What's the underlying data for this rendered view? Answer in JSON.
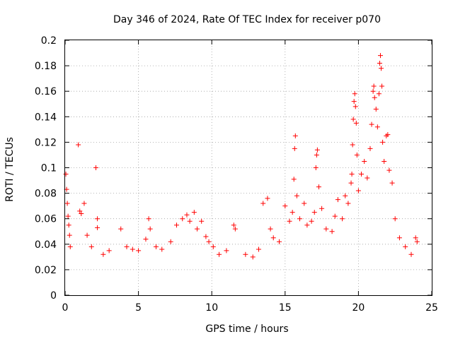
{
  "chart_data": {
    "type": "scatter",
    "title": "Day 346 of 2024, Rate Of TEC Index for receiver p070",
    "xlabel": "GPS time / hours",
    "ylabel": "ROTI / TECUs",
    "xlim": [
      0,
      25
    ],
    "ylim": [
      0,
      0.2
    ],
    "xticks": [
      0,
      5,
      10,
      15,
      20,
      25
    ],
    "xtick_labels": [
      "0",
      "5",
      "10",
      "15",
      "20",
      "25"
    ],
    "yticks": [
      0,
      0.02,
      0.04,
      0.06,
      0.08,
      0.1,
      0.12,
      0.14,
      0.16,
      0.18,
      0.2
    ],
    "ytick_labels": [
      "0",
      "0.02",
      "0.04",
      "0.06",
      "0.08",
      "0.1",
      "0.12",
      "0.14",
      "0.16",
      "0.18",
      "0.2"
    ],
    "grid": true,
    "marker": "+",
    "color": "#ff0000",
    "series": [
      {
        "name": "ROTI",
        "points": [
          [
            0.05,
            0.095
          ],
          [
            0.1,
            0.083
          ],
          [
            0.15,
            0.072
          ],
          [
            0.2,
            0.062
          ],
          [
            0.25,
            0.055
          ],
          [
            0.3,
            0.047
          ],
          [
            0.35,
            0.038
          ],
          [
            0.9,
            0.118
          ],
          [
            1.0,
            0.066
          ],
          [
            1.1,
            0.064
          ],
          [
            1.3,
            0.072
          ],
          [
            1.5,
            0.047
          ],
          [
            1.8,
            0.038
          ],
          [
            2.1,
            0.1
          ],
          [
            2.2,
            0.06
          ],
          [
            2.2,
            0.053
          ],
          [
            2.6,
            0.032
          ],
          [
            3.0,
            0.035
          ],
          [
            3.8,
            0.052
          ],
          [
            4.2,
            0.038
          ],
          [
            4.6,
            0.036
          ],
          [
            5.0,
            0.035
          ],
          [
            5.5,
            0.044
          ],
          [
            5.7,
            0.06
          ],
          [
            5.8,
            0.052
          ],
          [
            6.2,
            0.038
          ],
          [
            6.6,
            0.036
          ],
          [
            7.2,
            0.042
          ],
          [
            7.6,
            0.055
          ],
          [
            8.0,
            0.06
          ],
          [
            8.3,
            0.063
          ],
          [
            8.5,
            0.058
          ],
          [
            8.8,
            0.065
          ],
          [
            9.0,
            0.052
          ],
          [
            9.3,
            0.058
          ],
          [
            9.6,
            0.046
          ],
          [
            9.8,
            0.042
          ],
          [
            10.1,
            0.038
          ],
          [
            10.5,
            0.032
          ],
          [
            11.0,
            0.035
          ],
          [
            11.5,
            0.055
          ],
          [
            11.6,
            0.052
          ],
          [
            12.3,
            0.032
          ],
          [
            12.8,
            0.03
          ],
          [
            13.2,
            0.036
          ],
          [
            13.5,
            0.072
          ],
          [
            13.8,
            0.076
          ],
          [
            14.0,
            0.052
          ],
          [
            14.2,
            0.045
          ],
          [
            14.6,
            0.042
          ],
          [
            15.0,
            0.07
          ],
          [
            15.3,
            0.058
          ],
          [
            15.5,
            0.065
          ],
          [
            15.6,
            0.091
          ],
          [
            15.65,
            0.115
          ],
          [
            15.7,
            0.125
          ],
          [
            15.8,
            0.078
          ],
          [
            16.0,
            0.06
          ],
          [
            16.3,
            0.072
          ],
          [
            16.5,
            0.055
          ],
          [
            16.8,
            0.058
          ],
          [
            17.0,
            0.065
          ],
          [
            17.1,
            0.1
          ],
          [
            17.15,
            0.11
          ],
          [
            17.2,
            0.114
          ],
          [
            17.3,
            0.085
          ],
          [
            17.5,
            0.068
          ],
          [
            17.8,
            0.052
          ],
          [
            18.2,
            0.05
          ],
          [
            18.4,
            0.062
          ],
          [
            18.6,
            0.075
          ],
          [
            18.9,
            0.06
          ],
          [
            19.1,
            0.078
          ],
          [
            19.3,
            0.072
          ],
          [
            19.5,
            0.088
          ],
          [
            19.55,
            0.095
          ],
          [
            19.6,
            0.118
          ],
          [
            19.65,
            0.138
          ],
          [
            19.7,
            0.152
          ],
          [
            19.75,
            0.158
          ],
          [
            19.8,
            0.148
          ],
          [
            19.85,
            0.135
          ],
          [
            19.9,
            0.11
          ],
          [
            20.0,
            0.082
          ],
          [
            20.2,
            0.095
          ],
          [
            20.4,
            0.105
          ],
          [
            20.6,
            0.092
          ],
          [
            20.8,
            0.115
          ],
          [
            20.9,
            0.134
          ],
          [
            21.0,
            0.16
          ],
          [
            21.05,
            0.164
          ],
          [
            21.1,
            0.155
          ],
          [
            21.2,
            0.146
          ],
          [
            21.3,
            0.132
          ],
          [
            21.4,
            0.158
          ],
          [
            21.45,
            0.182
          ],
          [
            21.5,
            0.188
          ],
          [
            21.55,
            0.178
          ],
          [
            21.6,
            0.164
          ],
          [
            21.65,
            0.12
          ],
          [
            21.75,
            0.105
          ],
          [
            21.9,
            0.125
          ],
          [
            22.0,
            0.126
          ],
          [
            22.1,
            0.098
          ],
          [
            22.3,
            0.088
          ],
          [
            22.5,
            0.06
          ],
          [
            22.8,
            0.045
          ],
          [
            23.2,
            0.038
          ],
          [
            23.6,
            0.032
          ],
          [
            23.9,
            0.045
          ],
          [
            24.0,
            0.042
          ]
        ]
      }
    ]
  }
}
